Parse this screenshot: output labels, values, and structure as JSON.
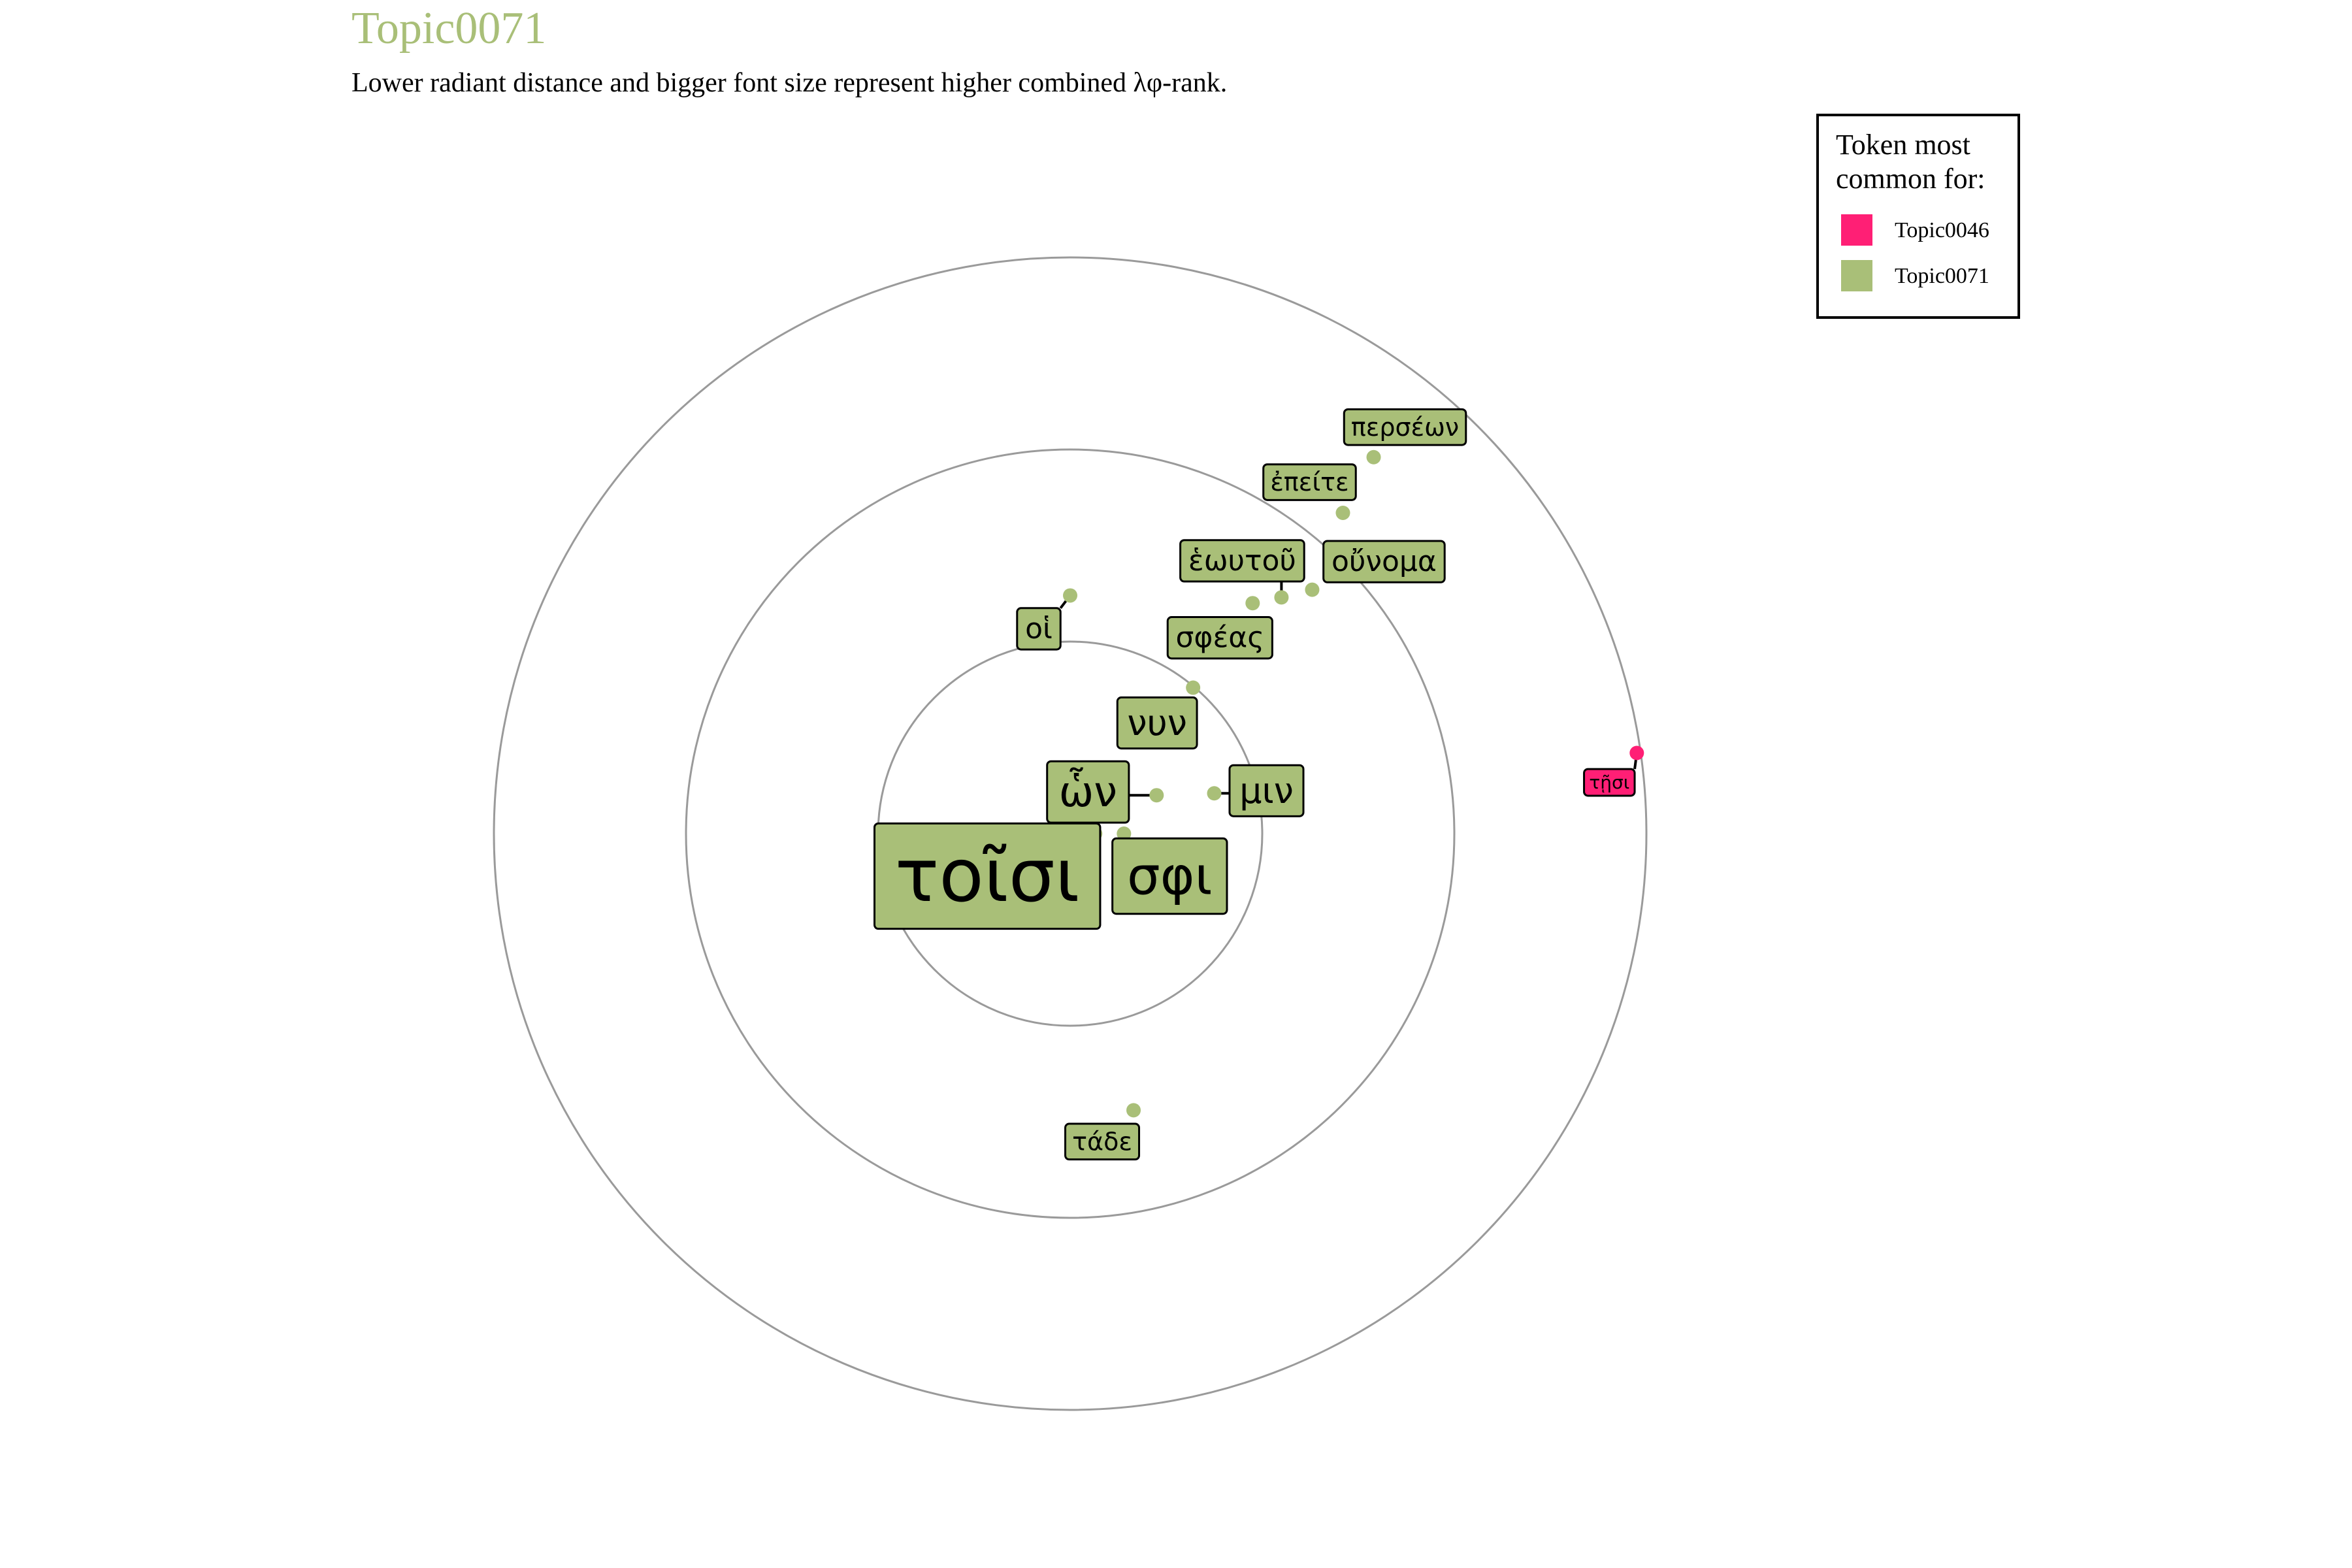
{
  "chart_data": {
    "type": "scatter",
    "title": "Topic0071",
    "subtitle": "Lower radiant distance and bigger font size represent higher combined λφ-rank.",
    "polar": true,
    "rings": [
      1,
      2,
      3
    ],
    "legend": {
      "title_lines": [
        "Token most",
        "common for:"
      ],
      "position": "top-right",
      "entries": [
        {
          "name": "Topic0046",
          "color": "#FF1F75"
        },
        {
          "name": "Topic0071",
          "color": "#A9BF78"
        }
      ]
    },
    "points": [
      {
        "token": "τοῖσι",
        "x": 0.13,
        "y": 0.0,
        "rank": 1,
        "group": "Topic0071"
      },
      {
        "token": "σφι",
        "x": 0.28,
        "y": 0.0,
        "rank": 2,
        "group": "Topic0071"
      },
      {
        "token": "ὧν",
        "x": 0.45,
        "y": 0.2,
        "rank": 3,
        "group": "Topic0071"
      },
      {
        "token": "μιν",
        "x": 0.75,
        "y": 0.21,
        "rank": 4,
        "group": "Topic0071"
      },
      {
        "token": "νυν",
        "x": 0.64,
        "y": 0.76,
        "rank": 5,
        "group": "Topic0071"
      },
      {
        "token": "οἱ",
        "x": 0.0,
        "y": 1.24,
        "rank": 6,
        "group": "Topic0071"
      },
      {
        "token": "σφέας",
        "x": 0.95,
        "y": 1.2,
        "rank": 7,
        "group": "Topic0071"
      },
      {
        "token": "ἑωυτοῦ",
        "x": 1.1,
        "y": 1.23,
        "rank": 8,
        "group": "Topic0071"
      },
      {
        "token": "οὔνομα",
        "x": 1.26,
        "y": 1.27,
        "rank": 9,
        "group": "Topic0071"
      },
      {
        "token": "ἐπείτε",
        "x": 1.42,
        "y": 1.67,
        "rank": 10,
        "group": "Topic0071"
      },
      {
        "token": "περσέων",
        "x": 1.58,
        "y": 1.96,
        "rank": 11,
        "group": "Topic0071"
      },
      {
        "token": "τάδε",
        "x": 0.33,
        "y": -1.44,
        "rank": 12,
        "group": "Topic0071"
      },
      {
        "token": "τῇσι",
        "x": 2.95,
        "y": 0.42,
        "rank": 13,
        "group": "Topic0046"
      }
    ]
  }
}
